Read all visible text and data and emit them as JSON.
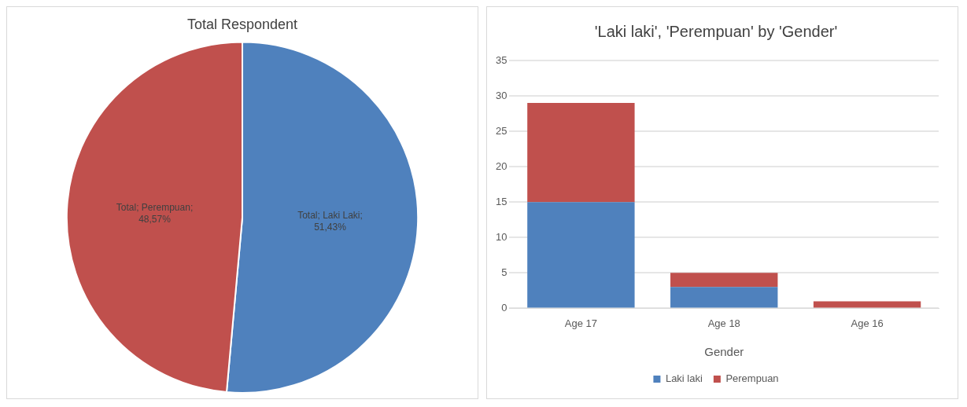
{
  "chart_data": [
    {
      "type": "pie",
      "title": "Total Respondent",
      "categories": [
        null,
        null
      ],
      "values": [
        51.43,
        48.57
      ],
      "colors": [
        "#4f81bd",
        "#c0504d"
      ],
      "value_labels": [
        "Total; Laki Laki; 51,43%",
        "Total; Perempuan; 48,57%"
      ],
      "legend": false
    },
    {
      "type": "bar",
      "title": "'Laki laki', 'Perempuan' by 'Gender'",
      "xlabel": "Gender",
      "categories": [
        "Age 17",
        "Age 18",
        "Age 16"
      ],
      "stacked": true,
      "ylim": [
        0,
        35
      ],
      "yticks": [
        0,
        5,
        10,
        15,
        20,
        25,
        30,
        35
      ],
      "grid": "y",
      "legend": "bottom",
      "series": [
        {
          "name": "Laki laki",
          "color": "#4f81bd",
          "values": [
            15,
            3,
            0
          ]
        },
        {
          "name": "Perempuan",
          "color": "#c0504d",
          "values": [
            14,
            2,
            1
          ]
        }
      ]
    }
  ]
}
